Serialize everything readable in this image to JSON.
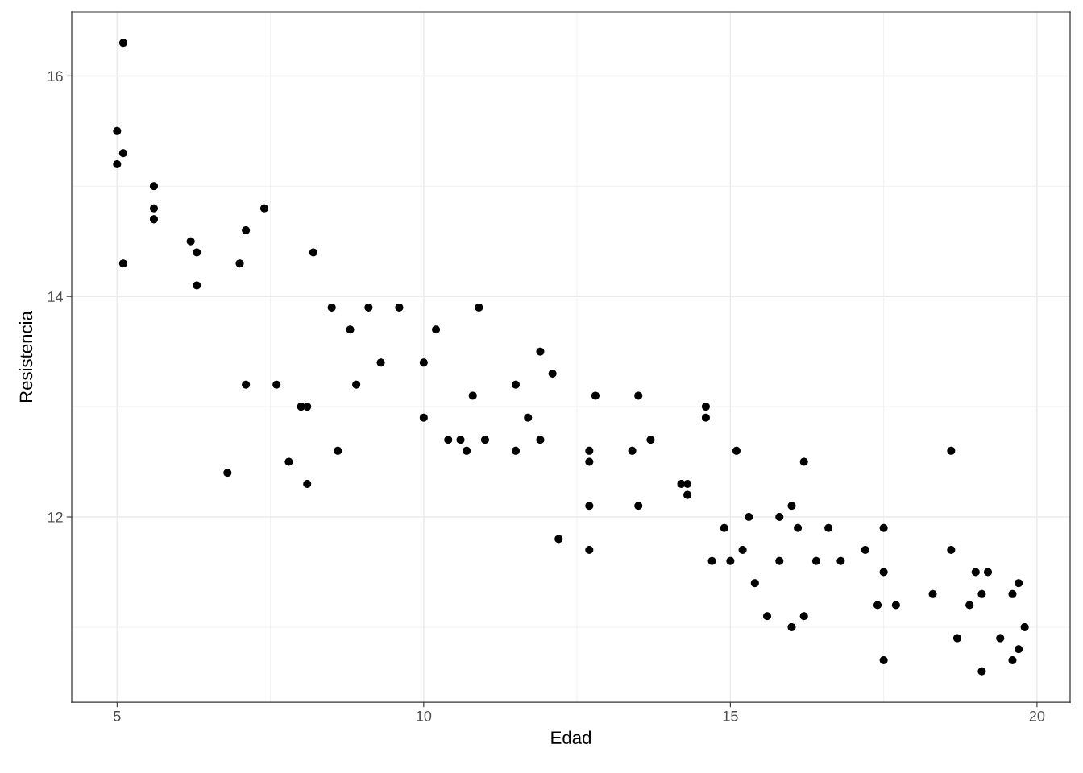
{
  "chart_data": {
    "type": "scatter",
    "xlabel": "Edad",
    "ylabel": "Resistencia",
    "x": [
      5.1,
      5.0,
      5.1,
      5.0,
      5.6,
      5.6,
      5.6,
      5.1,
      6.2,
      6.3,
      6.3,
      7.1,
      7.0,
      7.4,
      8.2,
      7.1,
      6.8,
      7.6,
      8.0,
      8.1,
      7.8,
      8.1,
      8.5,
      8.8,
      9.1,
      8.9,
      9.3,
      8.6,
      9.6,
      10.0,
      10.0,
      10.2,
      10.4,
      10.6,
      10.7,
      10.8,
      10.9,
      11.0,
      11.5,
      11.5,
      11.7,
      11.9,
      11.9,
      12.1,
      12.2,
      12.7,
      12.7,
      12.7,
      12.7,
      12.8,
      13.4,
      13.5,
      13.5,
      13.7,
      14.2,
      14.3,
      14.3,
      14.6,
      14.6,
      14.7,
      14.9,
      15.0,
      15.1,
      15.2,
      15.3,
      15.4,
      15.6,
      15.8,
      15.8,
      16.0,
      16.0,
      16.1,
      16.2,
      16.2,
      16.4,
      16.6,
      16.8,
      17.2,
      17.4,
      17.5,
      17.5,
      17.5,
      17.7,
      18.3,
      18.6,
      18.6,
      18.7,
      18.9,
      19.0,
      19.1,
      19.1,
      19.2,
      19.4,
      19.6,
      19.6,
      19.7,
      19.7,
      19.8
    ],
    "values": [
      16.3,
      15.5,
      15.3,
      15.2,
      15.0,
      14.8,
      14.7,
      14.3,
      14.5,
      14.4,
      14.1,
      14.6,
      14.3,
      14.8,
      14.4,
      13.2,
      12.4,
      13.2,
      13.0,
      13.0,
      12.5,
      12.3,
      13.9,
      13.7,
      13.9,
      13.2,
      13.4,
      12.6,
      13.9,
      13.4,
      12.9,
      13.7,
      12.7,
      12.7,
      12.6,
      13.1,
      13.9,
      12.7,
      13.2,
      12.6,
      12.9,
      13.5,
      12.7,
      13.3,
      11.8,
      12.6,
      12.5,
      12.1,
      11.7,
      13.1,
      12.6,
      13.1,
      12.1,
      12.7,
      12.3,
      12.3,
      12.2,
      13.0,
      12.9,
      11.6,
      11.9,
      11.6,
      12.6,
      11.7,
      12.0,
      11.4,
      11.1,
      12.0,
      11.6,
      11.0,
      12.1,
      11.9,
      12.5,
      11.1,
      11.6,
      11.9,
      11.6,
      11.7,
      11.2,
      11.9,
      11.5,
      10.7,
      11.2,
      11.3,
      12.6,
      11.7,
      10.9,
      11.2,
      11.5,
      11.3,
      10.6,
      11.5,
      10.9,
      11.3,
      10.7,
      11.4,
      10.8,
      11.0
    ],
    "color": "#000000",
    "marker": "circle",
    "xlim": [
      4.26,
      20.54
    ],
    "ylim": [
      10.32,
      16.58
    ],
    "xticks": [
      5,
      10,
      15,
      20
    ],
    "yticks": [
      12,
      14,
      16
    ],
    "grid": true
  }
}
